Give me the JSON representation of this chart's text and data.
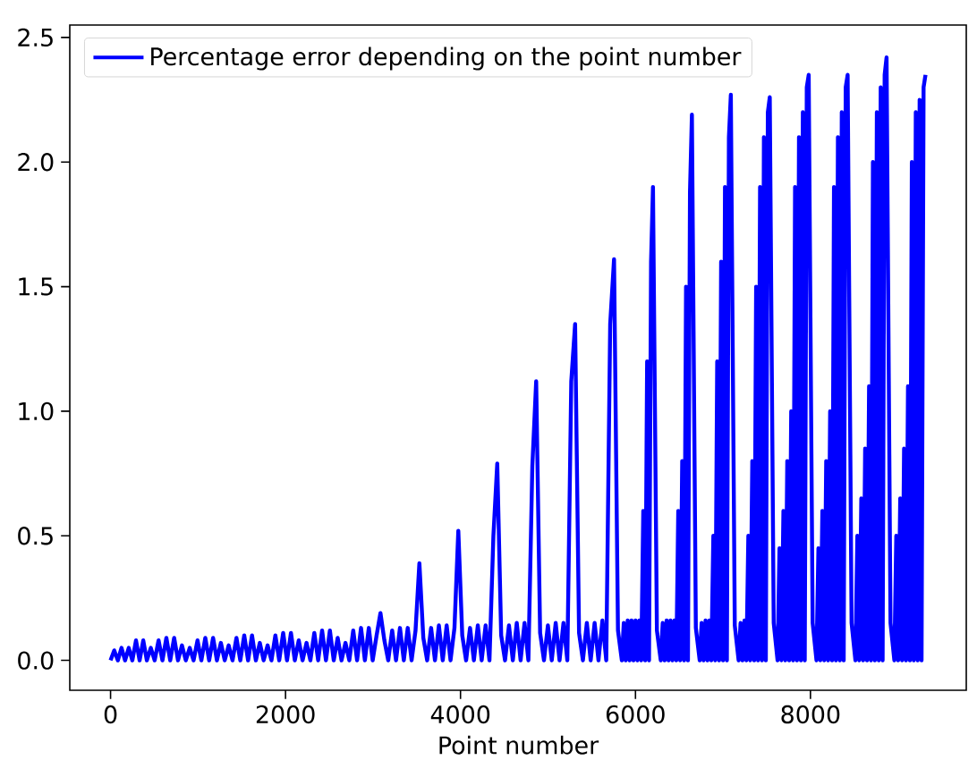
{
  "chart_data": {
    "type": "line",
    "xlabel": "Point number",
    "x": [
      0,
      42,
      83,
      125,
      166,
      208,
      249,
      291,
      332,
      374,
      415,
      460,
      504,
      549,
      593,
      638,
      682,
      727,
      771,
      816,
      860,
      905,
      949,
      994,
      1038,
      1083,
      1127,
      1172,
      1216,
      1261,
      1305,
      1350,
      1394,
      1439,
      1483,
      1528,
      1572,
      1617,
      1661,
      1706,
      1750,
      1795,
      1839,
      1884,
      1928,
      1973,
      2017,
      2062,
      2106,
      2151,
      2195,
      2240,
      2284,
      2329,
      2373,
      2418,
      2462,
      2507,
      2551,
      2596,
      2640,
      2685,
      2729,
      2774,
      2818,
      2863,
      2907,
      2952,
      2996,
      3041,
      3085,
      3130,
      3174,
      3219,
      3263,
      3308,
      3352,
      3397,
      3441,
      3486,
      3530,
      3575,
      3619,
      3664,
      3708,
      3753,
      3797,
      3842,
      3886,
      3931,
      3975,
      4020,
      4064,
      4109,
      4153,
      4198,
      4242,
      4287,
      4331,
      4376,
      4420,
      4465,
      4509,
      4554,
      4598,
      4643,
      4687,
      4732,
      4776,
      4821,
      4865,
      4910,
      4954,
      4999,
      5043,
      5088,
      5132,
      5177,
      5221,
      5266,
      5310,
      5355,
      5399,
      5444,
      5488,
      5533,
      5577,
      5622,
      5666,
      5711,
      5755,
      5800,
      5844,
      5866,
      5888,
      5911,
      5933,
      5955,
      5977,
      6000,
      6022,
      6044,
      6066,
      6089,
      6111,
      6133,
      6155,
      6178,
      6200,
      6245,
      6289,
      6311,
      6333,
      6356,
      6378,
      6400,
      6422,
      6445,
      6467,
      6489,
      6511,
      6534,
      6556,
      6578,
      6600,
      6623,
      6645,
      6690,
      6734,
      6756,
      6778,
      6801,
      6823,
      6845,
      6867,
      6890,
      6912,
      6934,
      6956,
      6979,
      7001,
      7023,
      7045,
      7068,
      7090,
      7135,
      7179,
      7201,
      7223,
      7246,
      7268,
      7290,
      7312,
      7335,
      7357,
      7379,
      7401,
      7424,
      7446,
      7468,
      7490,
      7513,
      7535,
      7580,
      7624,
      7646,
      7668,
      7691,
      7713,
      7735,
      7757,
      7780,
      7802,
      7824,
      7846,
      7869,
      7891,
      7913,
      7935,
      7958,
      7980,
      8025,
      8069,
      8091,
      8113,
      8136,
      8158,
      8180,
      8202,
      8225,
      8247,
      8269,
      8291,
      8314,
      8336,
      8358,
      8380,
      8403,
      8425,
      8470,
      8514,
      8536,
      8558,
      8581,
      8603,
      8625,
      8647,
      8670,
      8692,
      8714,
      8736,
      8759,
      8781,
      8803,
      8825,
      8848,
      8870,
      8915,
      8959,
      8981,
      9003,
      9026,
      9048,
      9070,
      9092,
      9115,
      9137,
      9159,
      9181,
      9204,
      9226,
      9248,
      9270,
      9293,
      9315
    ],
    "series": [
      {
        "name": "Percentage error depending on the point number",
        "color": "#0000ff",
        "values": [
          0,
          0.04,
          0,
          0.05,
          0,
          0.05,
          0,
          0.08,
          0,
          0.08,
          0,
          0.05,
          0,
          0.08,
          0,
          0.09,
          0,
          0.09,
          0,
          0.06,
          0,
          0.05,
          0,
          0.08,
          0,
          0.09,
          0,
          0.09,
          0,
          0.07,
          0,
          0.06,
          0,
          0.09,
          0,
          0.1,
          0,
          0.1,
          0,
          0.07,
          0,
          0.06,
          0,
          0.1,
          0,
          0.11,
          0,
          0.11,
          0,
          0.08,
          0,
          0.07,
          0,
          0.11,
          0,
          0.12,
          0,
          0.12,
          0,
          0.09,
          0,
          0.07,
          0,
          0.12,
          0,
          0.13,
          0,
          0.13,
          0,
          0.1,
          0.19,
          0.08,
          0,
          0.12,
          0,
          0.13,
          0,
          0.13,
          0,
          0.12,
          0.39,
          0.09,
          0,
          0.13,
          0,
          0.14,
          0,
          0.14,
          0,
          0.13,
          0.52,
          0.1,
          0,
          0.13,
          0,
          0.14,
          0,
          0.14,
          0,
          0.5,
          0.79,
          0.1,
          0,
          0.14,
          0,
          0.15,
          0,
          0.15,
          0,
          0.78,
          1.12,
          0.11,
          0,
          0.14,
          0,
          0.15,
          0,
          0.15,
          0,
          1.12,
          1.35,
          0.11,
          0,
          0.15,
          0,
          0.15,
          0,
          0.16,
          0,
          1.35,
          1.61,
          0.12,
          0,
          0.15,
          0,
          0.16,
          0,
          0.16,
          0,
          0.16,
          0,
          0.16,
          0,
          0.6,
          0,
          1.2,
          0,
          1.6,
          1.9,
          0.12,
          0,
          0.15,
          0,
          0.16,
          0,
          0.16,
          0,
          0.16,
          0,
          0.6,
          0,
          0.8,
          0,
          1.5,
          0,
          1.88,
          2.19,
          0.13,
          0,
          0.15,
          0,
          0.16,
          0,
          0.16,
          0,
          0.5,
          0,
          1.2,
          0,
          1.6,
          0,
          1.9,
          0,
          2.1,
          2.27,
          0.14,
          0,
          0.15,
          0,
          0.16,
          0,
          0.5,
          0,
          0.8,
          0,
          1.5,
          0,
          1.9,
          0,
          2.1,
          0,
          2.2,
          2.26,
          0.15,
          0,
          0.45,
          0,
          0.6,
          0,
          0.8,
          0,
          1.0,
          0,
          1.9,
          0,
          2.1,
          0,
          2.2,
          0,
          2.3,
          2.35,
          0.15,
          0,
          0.45,
          0,
          0.6,
          0,
          0.8,
          0,
          1.0,
          0,
          1.9,
          0,
          2.1,
          0,
          2.2,
          0,
          2.3,
          2.35,
          0.15,
          0,
          0.5,
          0,
          0.65,
          0,
          0.85,
          0,
          1.1,
          0,
          2.0,
          0,
          2.2,
          0,
          2.3,
          0,
          2.35,
          2.42,
          0.15,
          0,
          0.5,
          0,
          0.65,
          0,
          0.85,
          0,
          1.1,
          0,
          2.0,
          0,
          2.2,
          0,
          2.25,
          0,
          2.3,
          2.35
        ]
      }
    ],
    "xlim": [
      -466,
      9781
    ],
    "ylim": [
      -0.12,
      2.55
    ],
    "xticks": [
      0,
      2000,
      4000,
      6000,
      8000
    ],
    "yticks": [
      {
        "value": 0,
        "label": "0.0"
      },
      {
        "value": 0.5,
        "label": "0.5"
      },
      {
        "value": 1,
        "label": "1.0"
      },
      {
        "value": 1.5,
        "label": "1.5"
      },
      {
        "value": 2,
        "label": "2.0"
      },
      {
        "value": 2.5,
        "label": "2.5"
      }
    ],
    "legend": "top left"
  }
}
